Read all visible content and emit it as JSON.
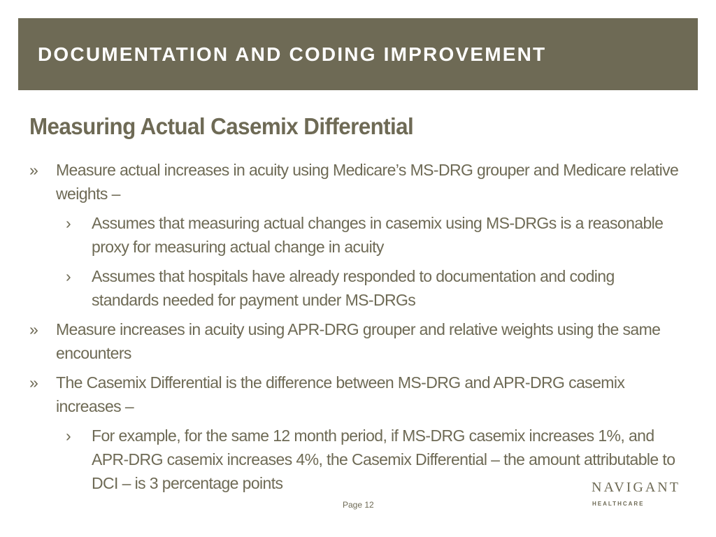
{
  "header": {
    "title": "DOCUMENTATION AND CODING IMPROVEMENT"
  },
  "slide": {
    "title": "Measuring Actual Casemix Differential"
  },
  "bullets": {
    "b1": {
      "marker": "»",
      "text": "Measure actual increases in acuity using Medicare’s MS-DRG grouper and Medicare relative weights –"
    },
    "b1a": {
      "marker": "›",
      "text": "Assumes that measuring actual changes in casemix using MS-DRGs is a reasonable proxy for measuring actual change in acuity"
    },
    "b1b": {
      "marker": "›",
      "text": "Assumes that hospitals have already responded to documentation and coding standards needed for payment under MS-DRGs"
    },
    "b2": {
      "marker": "»",
      "text": "Measure increases in acuity using APR-DRG grouper and relative weights using the same encounters"
    },
    "b3": {
      "marker": "»",
      "text": "The Casemix Differential is the difference between MS-DRG and APR-DRG casemix increases –"
    },
    "b3a": {
      "marker": "›",
      "text": "For example, for the same 12 month period, if MS-DRG casemix increases 1%, and APR-DRG casemix increases 4%, the Casemix Differential – the amount attributable to DCI – is 3 percentage points"
    }
  },
  "footer": {
    "page": "Page 12"
  },
  "logo": {
    "word": "NAVIGANT",
    "sub": "HEALTHCARE"
  },
  "colors": {
    "accent": "#6e6a55",
    "header_text": "#ffffff",
    "background": "#ffffff"
  }
}
